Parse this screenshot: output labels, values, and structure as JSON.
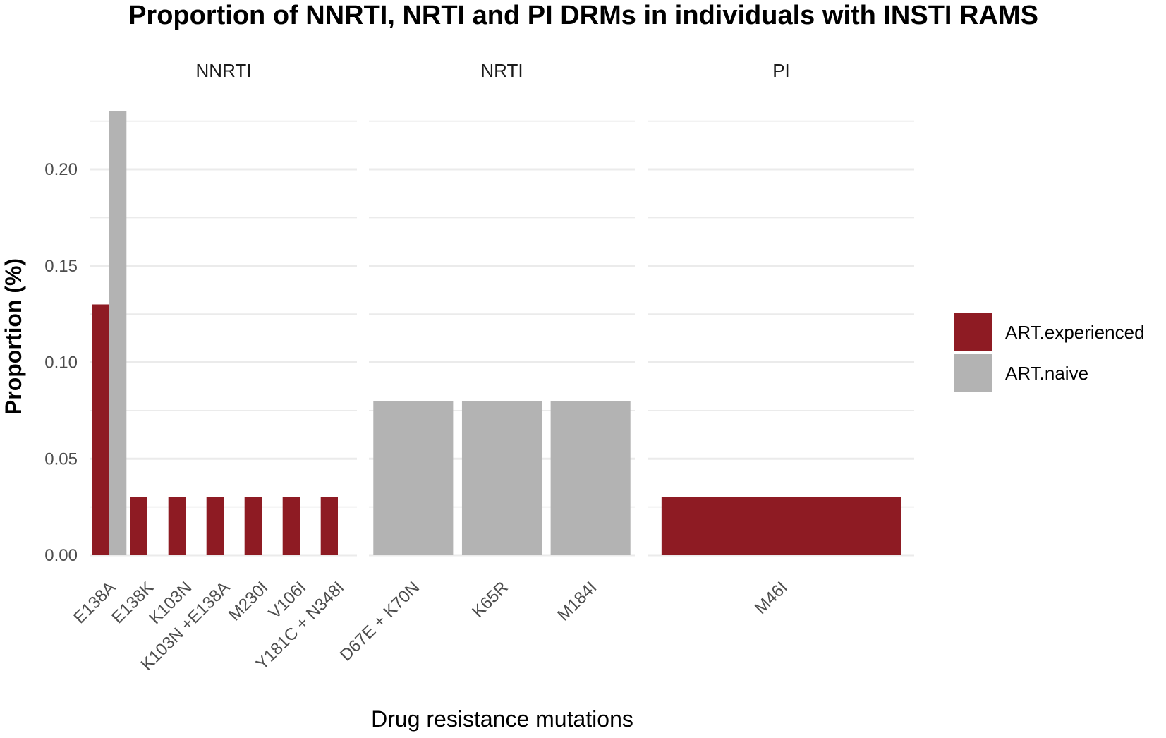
{
  "chart_data": {
    "type": "bar",
    "title": "Proportion of NNRTI, NRTI and PI DRMs in individuals with INSTI RAMS",
    "xlabel": "Drug resistance mutations",
    "ylabel": "Proportion (%)",
    "ylim": [
      0,
      0.23
    ],
    "yticks": [
      "0.00",
      "0.05",
      "0.10",
      "0.15",
      "0.20"
    ],
    "ytick_values": [
      0,
      0.05,
      0.1,
      0.15,
      0.2
    ],
    "series": [
      {
        "name": "ART.experienced",
        "color": "#8e1b23"
      },
      {
        "name": "ART.naive",
        "color": "#b3b3b3"
      }
    ],
    "legend": {
      "position": "right",
      "items": [
        "ART.experienced",
        "ART.naive"
      ]
    },
    "facets": [
      {
        "name": "NNRTI",
        "categories": [
          "E138A",
          "E138K",
          "K103N",
          "K103N +E138A",
          "M230I",
          "V106I",
          "Y181C + N348I"
        ],
        "bars": [
          {
            "category": "E138A",
            "series": "ART.experienced",
            "value": 0.13
          },
          {
            "category": "E138A",
            "series": "ART.naive",
            "value": 0.23
          },
          {
            "category": "E138K",
            "series": "ART.experienced",
            "value": 0.03
          },
          {
            "category": "K103N",
            "series": "ART.experienced",
            "value": 0.03
          },
          {
            "category": "K103N +E138A",
            "series": "ART.experienced",
            "value": 0.03
          },
          {
            "category": "M230I",
            "series": "ART.experienced",
            "value": 0.03
          },
          {
            "category": "V106I",
            "series": "ART.experienced",
            "value": 0.03
          },
          {
            "category": "Y181C + N348I",
            "series": "ART.experienced",
            "value": 0.03
          }
        ]
      },
      {
        "name": "NRTI",
        "categories": [
          "D67E + K70N",
          "K65R",
          "M184I"
        ],
        "bars": [
          {
            "category": "D67E + K70N",
            "series": "ART.naive",
            "value": 0.08
          },
          {
            "category": "K65R",
            "series": "ART.naive",
            "value": 0.08
          },
          {
            "category": "M184I",
            "series": "ART.naive",
            "value": 0.08
          }
        ]
      },
      {
        "name": "PI",
        "categories": [
          "M46I"
        ],
        "bars": [
          {
            "category": "M46I",
            "series": "ART.experienced",
            "value": 0.03
          }
        ]
      }
    ]
  }
}
